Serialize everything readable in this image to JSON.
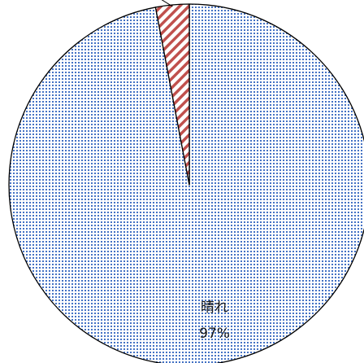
{
  "chart_data": {
    "type": "pie",
    "title": "",
    "slices": [
      {
        "label": "晴れ",
        "value": 97,
        "value_label": "97%",
        "color": "#4472c4",
        "pattern": "dotted",
        "show_label": true
      },
      {
        "label": "",
        "value": 3,
        "value_label": "",
        "color": "#c0504d",
        "pattern": "diagonal-stripes",
        "show_label": false
      }
    ],
    "start": "12 o'clock",
    "direction": "clockwise",
    "legend": "none"
  }
}
